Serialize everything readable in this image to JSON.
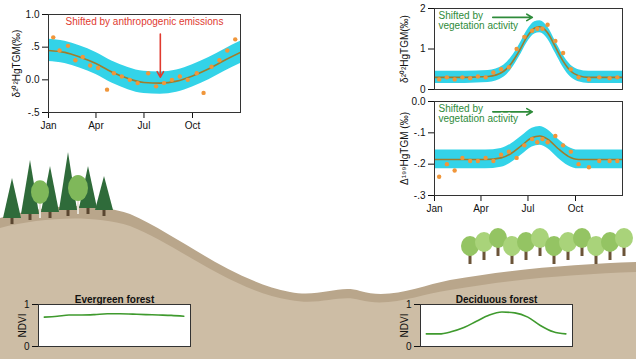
{
  "chart_data": [
    {
      "type": "line",
      "y_label": "δ²⁰²HgTGM(‰)",
      "xlim": [
        1,
        365
      ],
      "xticks": [
        {
          "value": 1,
          "label": "Jan"
        },
        {
          "value": 91,
          "label": "Apr"
        },
        {
          "value": 182,
          "label": "Jul"
        },
        {
          "value": 274,
          "label": "Oct"
        }
      ],
      "ylim": [
        -0.5,
        1.0
      ],
      "yticks": [
        {
          "value": -0.5,
          "label": "-.5"
        },
        {
          "value": 0,
          "label": "0.0"
        },
        {
          "value": 0.5,
          "label": ".5"
        },
        {
          "value": 1,
          "label": "1.0"
        }
      ],
      "annotation": {
        "text": "Shifted by anthropogenic emissions",
        "color": "#e03a2f"
      },
      "series": [
        {
          "type": "area",
          "color": "#33d3e8",
          "x": [
            1,
            32,
            60,
            91,
            121,
            152,
            182,
            213,
            244,
            274,
            305,
            335,
            365
          ],
          "lower": [
            0.28,
            0.25,
            0.18,
            0.08,
            -0.05,
            -0.15,
            -0.21,
            -0.22,
            -0.19,
            -0.11,
            0.0,
            0.13,
            0.25
          ],
          "upper": [
            0.62,
            0.59,
            0.52,
            0.42,
            0.29,
            0.19,
            0.13,
            0.12,
            0.15,
            0.23,
            0.34,
            0.47,
            0.59
          ]
        },
        {
          "type": "line",
          "color": "#a07d2c",
          "x": [
            1,
            32,
            60,
            91,
            121,
            152,
            182,
            213,
            244,
            274,
            305,
            335,
            365
          ],
          "values": [
            0.45,
            0.42,
            0.35,
            0.25,
            0.12,
            0.02,
            -0.04,
            -0.05,
            -0.02,
            0.06,
            0.17,
            0.3,
            0.42
          ]
        },
        {
          "type": "scatter",
          "color": "#f0963a",
          "marker": "circle",
          "x": [
            10,
            22,
            38,
            52,
            66,
            80,
            95,
            112,
            125,
            140,
            155,
            170,
            190,
            205,
            220,
            235,
            250,
            265,
            282,
            295,
            310,
            325,
            340,
            355
          ],
          "values": [
            0.65,
            0.45,
            0.52,
            0.3,
            0.35,
            0.22,
            0.18,
            -0.15,
            0.1,
            0.05,
            0.0,
            -0.05,
            0.1,
            -0.1,
            -0.05,
            0.0,
            0.05,
            0.0,
            0.1,
            -0.2,
            0.2,
            0.3,
            0.45,
            0.62
          ]
        }
      ]
    },
    {
      "type": "line",
      "y_label": "δ²⁰²HgTGM(‰)",
      "tick_labels": "y",
      "xlim": [
        1,
        365
      ],
      "ylim": [
        0,
        2
      ],
      "yticks": [
        0,
        1,
        2
      ],
      "annotation": {
        "text": "Shifted by vegetation activity",
        "color": "#2e8b3a"
      },
      "series": [
        {
          "type": "area",
          "color": "#33d3e8",
          "x": [
            1,
            60,
            105,
            135,
            150,
            165,
            180,
            195,
            205,
            220,
            235,
            250,
            265,
            280,
            300,
            365
          ],
          "lower": [
            0.15,
            0.15,
            0.17,
            0.3,
            0.5,
            0.8,
            1.15,
            1.37,
            1.4,
            1.25,
            0.9,
            0.55,
            0.3,
            0.19,
            0.15,
            0.15
          ],
          "upper": [
            0.45,
            0.45,
            0.47,
            0.6,
            0.8,
            1.1,
            1.45,
            1.67,
            1.7,
            1.55,
            1.2,
            0.85,
            0.6,
            0.49,
            0.45,
            0.45
          ]
        },
        {
          "type": "line",
          "color": "#a07d2c",
          "x": [
            1,
            60,
            105,
            135,
            150,
            165,
            180,
            195,
            205,
            220,
            235,
            250,
            265,
            280,
            300,
            365
          ],
          "values": [
            0.3,
            0.3,
            0.32,
            0.45,
            0.65,
            0.95,
            1.3,
            1.52,
            1.55,
            1.4,
            1.05,
            0.7,
            0.45,
            0.34,
            0.3,
            0.3
          ]
        },
        {
          "type": "scatter",
          "color": "#f0963a",
          "marker": "circle",
          "x": [
            10,
            25,
            40,
            55,
            70,
            85,
            100,
            115,
            130,
            145,
            160,
            175,
            190,
            200,
            210,
            220,
            235,
            250,
            265,
            280,
            300,
            320,
            340,
            355
          ],
          "values": [
            0.25,
            0.3,
            0.25,
            0.3,
            0.28,
            0.32,
            0.3,
            0.42,
            0.5,
            0.55,
            1.0,
            1.3,
            1.45,
            1.5,
            1.5,
            1.6,
            1.2,
            0.9,
            0.5,
            0.3,
            0.25,
            0.3,
            0.28,
            0.3
          ]
        }
      ]
    },
    {
      "type": "line",
      "y_label": "Δ¹⁹⁹HgTGM (‰)",
      "xlim": [
        1,
        365
      ],
      "xticks": [
        {
          "value": 1,
          "label": "Jan"
        },
        {
          "value": 91,
          "label": "Apr"
        },
        {
          "value": 182,
          "label": "Jul"
        },
        {
          "value": 274,
          "label": "Oct"
        }
      ],
      "ylim": [
        -0.3,
        0.0
      ],
      "yticks": [
        {
          "value": 0,
          "label": "0.0"
        },
        {
          "value": -0.1,
          "label": "-.1"
        },
        {
          "value": -0.2,
          "label": "-.2"
        },
        {
          "value": -0.3,
          "label": "-.3"
        }
      ],
      "annotation": {
        "text": "Shifted by vegetation activity",
        "color": "#2e8b3a"
      },
      "series": [
        {
          "type": "area",
          "color": "#33d3e8",
          "x": [
            1,
            100,
            130,
            150,
            170,
            190,
            205,
            220,
            240,
            260,
            280,
            365
          ],
          "lower": [
            -0.215,
            -0.215,
            -0.21,
            -0.195,
            -0.17,
            -0.145,
            -0.14,
            -0.15,
            -0.18,
            -0.205,
            -0.215,
            -0.215
          ],
          "upper": [
            -0.155,
            -0.155,
            -0.15,
            -0.135,
            -0.11,
            -0.085,
            -0.08,
            -0.09,
            -0.12,
            -0.145,
            -0.155,
            -0.155
          ]
        },
        {
          "type": "line",
          "color": "#a07d2c",
          "x": [
            1,
            100,
            130,
            150,
            170,
            190,
            205,
            220,
            240,
            260,
            280,
            365
          ],
          "values": [
            -0.185,
            -0.185,
            -0.18,
            -0.165,
            -0.14,
            -0.115,
            -0.11,
            -0.12,
            -0.15,
            -0.175,
            -0.185,
            -0.185
          ]
        },
        {
          "type": "scatter",
          "color": "#f0963a",
          "marker": "circle",
          "x": [
            10,
            25,
            40,
            55,
            70,
            85,
            100,
            115,
            130,
            145,
            160,
            175,
            190,
            200,
            210,
            220,
            235,
            250,
            265,
            280,
            300,
            320,
            340,
            355
          ],
          "values": [
            -0.24,
            -0.2,
            -0.22,
            -0.18,
            -0.19,
            -0.19,
            -0.18,
            -0.19,
            -0.17,
            -0.16,
            -0.18,
            -0.14,
            -0.12,
            -0.13,
            -0.12,
            -0.13,
            -0.11,
            -0.14,
            -0.16,
            -0.2,
            -0.21,
            -0.19,
            -0.19,
            -0.19
          ]
        }
      ]
    },
    {
      "type": "line",
      "title": "Evergreen forest",
      "y_label": "NDVI",
      "tick_labels": "y",
      "xlim": [
        1,
        365
      ],
      "ylim": [
        0,
        1
      ],
      "yticks": [
        0,
        1
      ],
      "series": [
        {
          "type": "line",
          "color": "#3f9a2e",
          "x": [
            15,
            46,
            74,
            105,
            135,
            166,
            196,
            227,
            258,
            288,
            319,
            349
          ],
          "values": [
            0.7,
            0.72,
            0.75,
            0.75,
            0.76,
            0.78,
            0.78,
            0.77,
            0.76,
            0.75,
            0.74,
            0.72
          ]
        }
      ]
    },
    {
      "type": "line",
      "title": "Deciduous forest",
      "y_label": "NDVI",
      "tick_labels": "y",
      "xlim": [
        1,
        365
      ],
      "ylim": [
        0,
        1
      ],
      "yticks": [
        0,
        1
      ],
      "series": [
        {
          "type": "line",
          "color": "#3f9a2e",
          "x": [
            15,
            46,
            74,
            105,
            135,
            166,
            196,
            227,
            258,
            288,
            319,
            349
          ],
          "values": [
            0.3,
            0.3,
            0.35,
            0.45,
            0.6,
            0.75,
            0.82,
            0.8,
            0.7,
            0.5,
            0.35,
            0.3
          ]
        }
      ]
    }
  ]
}
